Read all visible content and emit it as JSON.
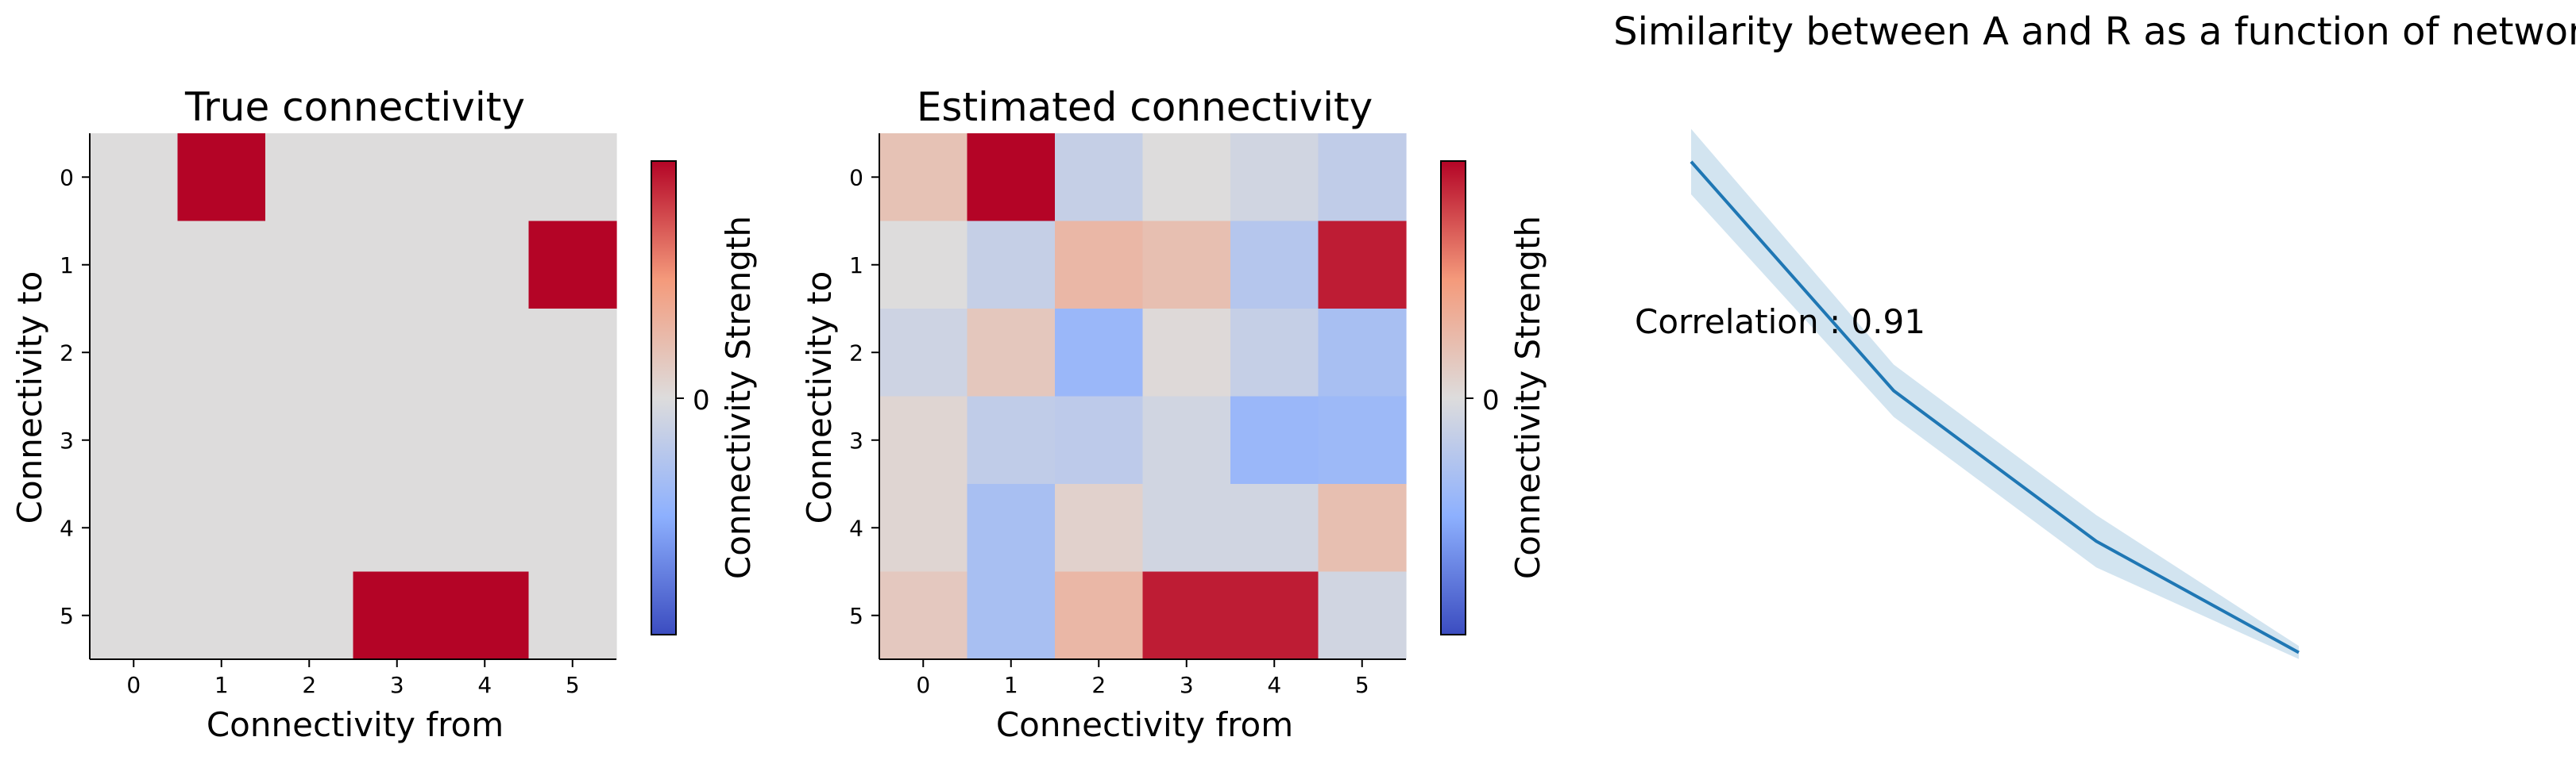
{
  "chart_data": [
    {
      "type": "heatmap",
      "title": "True connectivity",
      "xlabel": "Connectivity from",
      "ylabel": "Connectivity to",
      "x_ticks": [
        "0",
        "1",
        "2",
        "3",
        "4",
        "5"
      ],
      "y_ticks": [
        "0",
        "1",
        "2",
        "3",
        "4",
        "5"
      ],
      "values": [
        [
          0,
          1,
          0,
          0,
          0,
          0
        ],
        [
          0,
          0,
          0,
          0,
          0,
          1
        ],
        [
          0,
          0,
          0,
          0,
          0,
          0
        ],
        [
          0,
          0,
          0,
          0,
          0,
          0
        ],
        [
          0,
          0,
          0,
          0,
          0,
          0
        ],
        [
          0,
          0,
          0,
          1,
          1,
          0
        ]
      ],
      "vlim": [
        -1,
        1
      ],
      "colormap": "coolwarm",
      "colorbar": {
        "label": "Connectivity Strength",
        "tick": "0",
        "tick_value": 0
      }
    },
    {
      "type": "heatmap",
      "title": "Estimated connectivity",
      "xlabel": "Connectivity from",
      "ylabel": "Connectivity to",
      "x_ticks": [
        "0",
        "1",
        "2",
        "3",
        "4",
        "5"
      ],
      "y_ticks": [
        "0",
        "1",
        "2",
        "3",
        "4",
        "5"
      ],
      "values": [
        [
          0.2,
          1.0,
          -0.15,
          0.0,
          -0.08,
          -0.18
        ],
        [
          0.0,
          -0.15,
          0.28,
          0.22,
          -0.25,
          0.92
        ],
        [
          -0.1,
          0.16,
          -0.42,
          0.02,
          -0.15,
          -0.33
        ],
        [
          0.05,
          -0.18,
          -0.2,
          -0.08,
          -0.42,
          -0.4
        ],
        [
          0.05,
          -0.33,
          0.08,
          -0.08,
          -0.08,
          0.22
        ],
        [
          0.15,
          -0.33,
          0.28,
          0.92,
          0.92,
          -0.08
        ]
      ],
      "vlim": [
        -1,
        1
      ],
      "colormap": "coolwarm",
      "colorbar": {
        "label": "Connectivity Strength",
        "tick": "0",
        "tick_value": 0
      }
    },
    {
      "type": "line",
      "title": "Similarity between A and R as a function of network size",
      "xlabel": "",
      "ylabel": "",
      "x": [
        1,
        2,
        3,
        4
      ],
      "series": [
        {
          "values": [
            0.95,
            0.6,
            0.37,
            0.2
          ],
          "lower": [
            0.9,
            0.56,
            0.33,
            0.19
          ],
          "upper": [
            1.0,
            0.64,
            0.41,
            0.21
          ],
          "color": "#1f77b4"
        }
      ],
      "xlim": [
        0.8,
        4.2
      ],
      "ylim": [
        0.1,
        1.1
      ],
      "axes_visible": false,
      "annotation": "Correlation : 0.91"
    }
  ]
}
